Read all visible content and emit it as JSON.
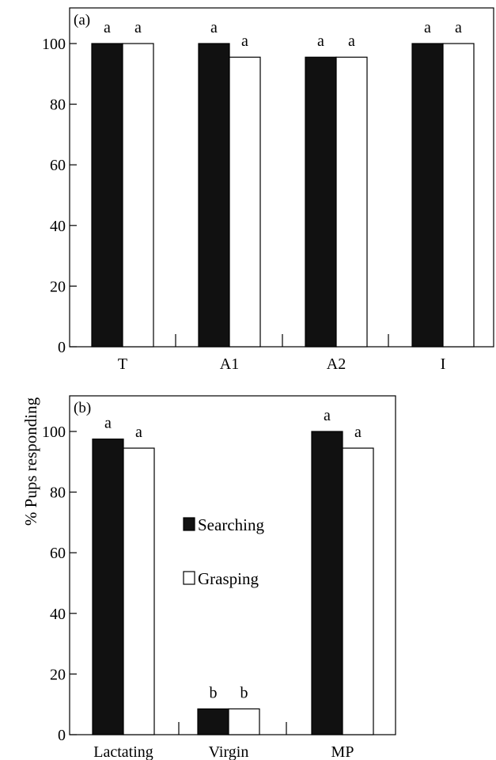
{
  "chart_data": [
    {
      "type": "bar",
      "panel_label": "(a)",
      "categories": [
        "T",
        "A1",
        "A2",
        "I"
      ],
      "series": [
        {
          "name": "Searching",
          "values": [
            100,
            100,
            95.5,
            100
          ],
          "color": "#111111"
        },
        {
          "name": "Grasping",
          "values": [
            100,
            95.5,
            95.5,
            100
          ],
          "color": "#ffffff"
        }
      ],
      "significance": [
        [
          "a",
          "a"
        ],
        [
          "a",
          "a"
        ],
        [
          "a",
          "a"
        ],
        [
          "a",
          "a"
        ]
      ],
      "yticks": [
        0,
        20,
        40,
        60,
        80,
        100
      ],
      "ylim": [
        0,
        110
      ],
      "grid": false
    },
    {
      "type": "bar",
      "panel_label": "(b)",
      "categories": [
        "Lactating",
        "Virgin",
        "MP"
      ],
      "series": [
        {
          "name": "Searching",
          "values": [
            97.5,
            8.5,
            100
          ],
          "color": "#111111"
        },
        {
          "name": "Grasping",
          "values": [
            94.5,
            8.5,
            94.5
          ],
          "color": "#ffffff"
        }
      ],
      "significance": [
        [
          "a",
          "a"
        ],
        [
          "b",
          "b"
        ],
        [
          "a",
          "a"
        ]
      ],
      "yticks": [
        0,
        20,
        40,
        60,
        80,
        100
      ],
      "ylim": [
        0,
        110
      ],
      "grid": false,
      "legend": {
        "placement": "center",
        "items": [
          "Searching",
          "Grasping"
        ]
      }
    }
  ],
  "ylabel": "% Pups responding"
}
